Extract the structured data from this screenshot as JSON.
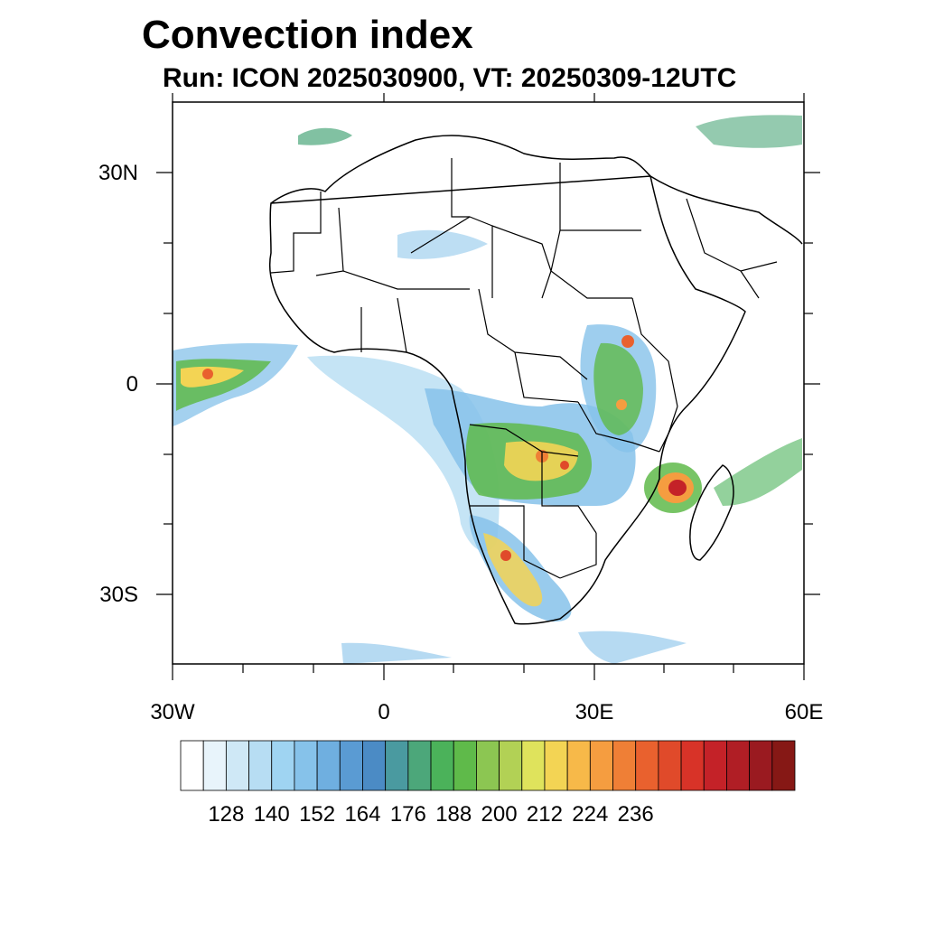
{
  "title": "Convection index",
  "subtitle": "Run: ICON 2025030900,  VT: 20250309-12UTC",
  "lat_labels": [
    "30N",
    "0",
    "30S"
  ],
  "lon_labels": [
    "30W",
    "0",
    "30E",
    "60E"
  ],
  "colorbar": {
    "labels": [
      "128",
      "140",
      "152",
      "164",
      "176",
      "188",
      "200",
      "212",
      "224",
      "236"
    ],
    "colors": [
      "#ffffff",
      "#e8f4fb",
      "#cfe8f6",
      "#b7ddf3",
      "#9fd4f2",
      "#86c2ea",
      "#6fafe0",
      "#5a9bd3",
      "#4b8bc5",
      "#4a9aa0",
      "#4ca77a",
      "#4bb25a",
      "#5fba4a",
      "#8cc652",
      "#b2d155",
      "#dfe35c",
      "#f3d454",
      "#f7b949",
      "#f59d40",
      "#ef7f36",
      "#e9612e",
      "#e04a2a",
      "#d83328",
      "#c42228",
      "#b01e25",
      "#9a1a20",
      "#861815"
    ]
  },
  "features": {
    "coastline": "coastline",
    "country_borders": "country-borders"
  },
  "colors": {
    "background": "#ffffff",
    "frame": "#000000"
  }
}
